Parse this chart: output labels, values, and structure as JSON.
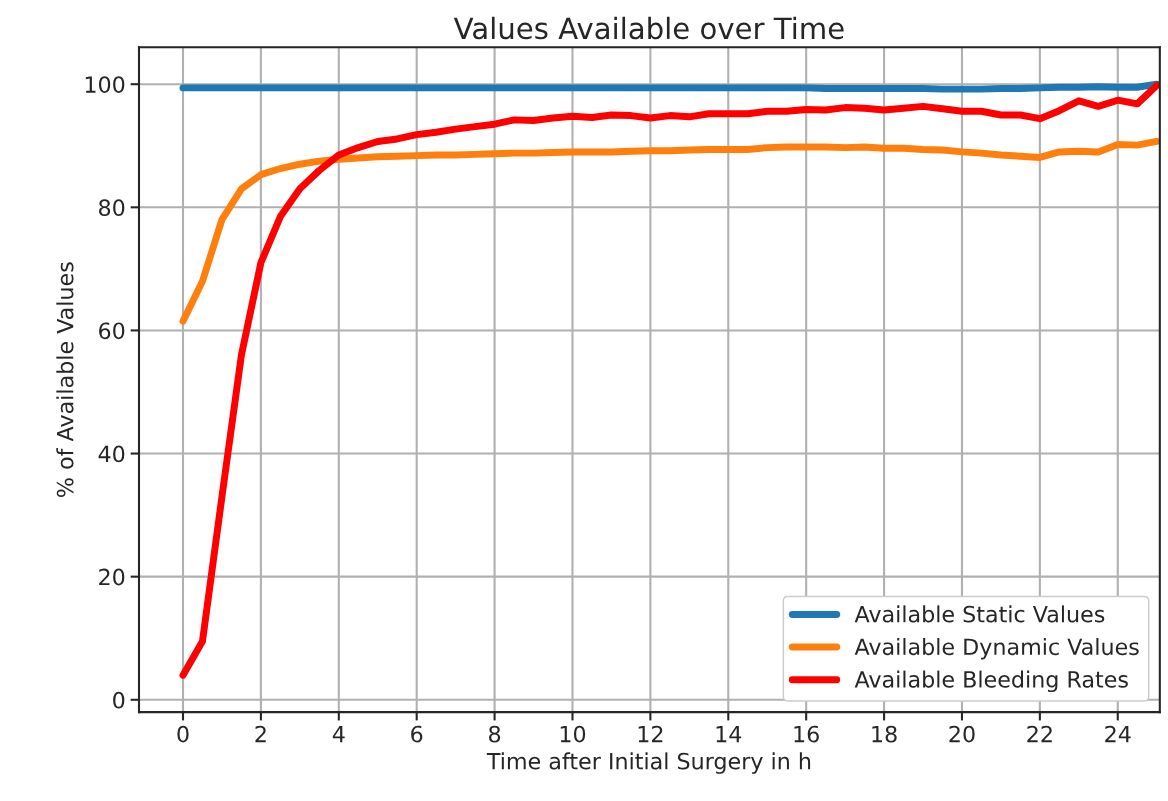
{
  "chart_data": {
    "type": "line",
    "title": "Values Available over Time",
    "xlabel": "Time after Initial Surgery in h",
    "ylabel": "% of Available Values",
    "x": [
      0,
      0.5,
      1,
      1.5,
      2,
      2.5,
      3,
      3.5,
      4,
      4.5,
      5,
      5.5,
      6,
      6.5,
      7,
      7.5,
      8,
      8.5,
      9,
      9.5,
      10,
      10.5,
      11,
      11.5,
      12,
      12.5,
      13,
      13.5,
      14,
      14.5,
      15,
      15.5,
      16,
      16.5,
      17,
      17.5,
      18,
      18.5,
      19,
      19.5,
      20,
      20.5,
      21,
      21.5,
      22,
      22.5,
      23,
      23.5,
      24,
      24.5,
      25
    ],
    "series": [
      {
        "name": "Available Static Values",
        "color": "#1f77b4",
        "values": [
          99.4,
          99.4,
          99.4,
          99.4,
          99.4,
          99.4,
          99.4,
          99.4,
          99.4,
          99.4,
          99.4,
          99.4,
          99.4,
          99.4,
          99.4,
          99.4,
          99.4,
          99.4,
          99.4,
          99.4,
          99.4,
          99.4,
          99.4,
          99.4,
          99.4,
          99.4,
          99.4,
          99.4,
          99.4,
          99.4,
          99.4,
          99.4,
          99.4,
          99.3,
          99.3,
          99.3,
          99.3,
          99.3,
          99.3,
          99.2,
          99.2,
          99.2,
          99.3,
          99.3,
          99.4,
          99.5,
          99.5,
          99.6,
          99.5,
          99.5,
          100
        ]
      },
      {
        "name": "Available Dynamic Values",
        "color": "#ff7f0e",
        "values": [
          61.5,
          68,
          78,
          83,
          85.3,
          86.3,
          87,
          87.5,
          87.8,
          88,
          88.2,
          88.3,
          88.4,
          88.5,
          88.5,
          88.6,
          88.7,
          88.8,
          88.8,
          88.9,
          89,
          89,
          89,
          89.1,
          89.2,
          89.2,
          89.3,
          89.4,
          89.4,
          89.4,
          89.7,
          89.8,
          89.8,
          89.8,
          89.7,
          89.8,
          89.6,
          89.6,
          89.4,
          89.3,
          89,
          88.8,
          88.5,
          88.3,
          88.1,
          89,
          89.1,
          89,
          90.2,
          90.1,
          90.7
        ]
      },
      {
        "name": "Available Bleeding Rates",
        "color": "#ff0000",
        "values": [
          4,
          9.5,
          33,
          56,
          71,
          78.5,
          83,
          86,
          88.5,
          89.7,
          90.7,
          91.1,
          91.8,
          92.2,
          92.7,
          93.1,
          93.5,
          94.2,
          94.1,
          94.5,
          94.8,
          94.6,
          95,
          94.9,
          94.5,
          94.9,
          94.7,
          95.2,
          95.2,
          95.2,
          95.6,
          95.6,
          95.9,
          95.8,
          96.2,
          96.1,
          95.8,
          96.1,
          96.4,
          96,
          95.6,
          95.6,
          95,
          95,
          94.4,
          95.7,
          97.3,
          96.4,
          97.4,
          96.8,
          99.8
        ]
      }
    ],
    "xlim": [
      -1.13,
      25.08
    ],
    "ylim": [
      -2,
      106
    ],
    "xticks": [
      0,
      2,
      4,
      6,
      8,
      10,
      12,
      14,
      16,
      18,
      20,
      22,
      24
    ],
    "yticks": [
      0,
      20,
      40,
      60,
      80,
      100
    ],
    "grid": true,
    "legend": "lower right",
    "line_style": "solid",
    "marker": "none"
  }
}
